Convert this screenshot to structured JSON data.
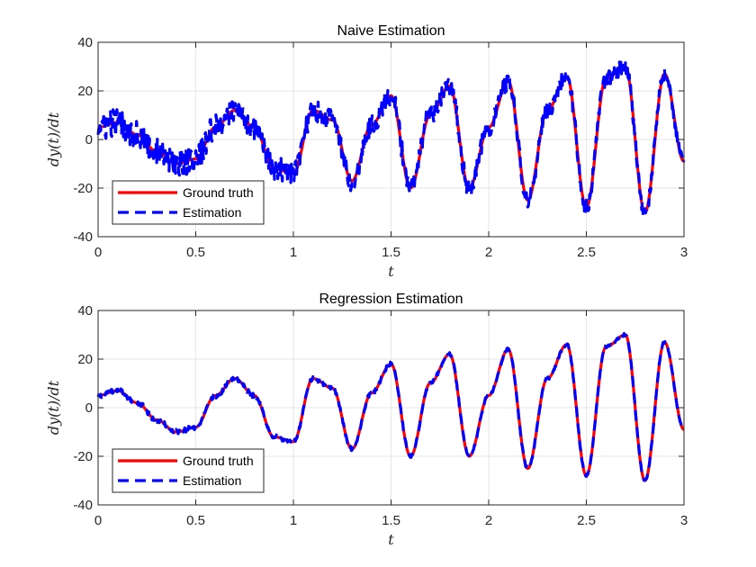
{
  "chart_data": [
    {
      "type": "line",
      "title": "Naive Estimation",
      "xlabel": "t",
      "ylabel": "dy(t)/dt",
      "xlim": [
        0,
        3
      ],
      "ylim": [
        -40,
        40
      ],
      "xticks": [
        "0",
        "0.5",
        "1",
        "1.5",
        "2",
        "2.5",
        "3"
      ],
      "yticks": [
        "40",
        "20",
        "0",
        "-20",
        "-40"
      ],
      "grid": true,
      "legend_position": "bottom-left",
      "series": [
        {
          "name": "Ground truth",
          "color": "#ff0000",
          "style": "solid",
          "x": [
            0,
            0.1,
            0.2,
            0.3,
            0.4,
            0.5,
            0.6,
            0.7,
            0.8,
            0.9,
            1.0,
            1.1,
            1.2,
            1.3,
            1.4,
            1.5,
            1.6,
            1.7,
            1.8,
            1.9,
            2.0,
            2.1,
            2.2,
            2.3,
            2.4,
            2.5,
            2.6,
            2.7,
            2.8,
            2.9,
            3.0
          ],
          "y": [
            5,
            7,
            2,
            -5,
            -10,
            -8,
            5,
            12,
            5,
            -12,
            -14,
            12,
            8,
            -17,
            6,
            18,
            -20,
            10,
            22,
            -20,
            5,
            24,
            -25,
            12,
            26,
            -28,
            25,
            30,
            -30,
            27,
            -9
          ]
        },
        {
          "name": "Estimation",
          "color": "#0000ff",
          "style": "dashed",
          "noise": 6,
          "x": [
            0,
            0.1,
            0.2,
            0.3,
            0.4,
            0.5,
            0.6,
            0.7,
            0.8,
            0.9,
            1.0,
            1.1,
            1.2,
            1.3,
            1.4,
            1.5,
            1.6,
            1.7,
            1.8,
            1.9,
            2.0,
            2.1,
            2.2,
            2.3,
            2.4,
            2.5,
            2.6,
            2.7,
            2.8,
            2.9,
            3.0
          ],
          "y": [
            5,
            7,
            2,
            -5,
            -10,
            -8,
            5,
            12,
            5,
            -12,
            -14,
            12,
            8,
            -17,
            6,
            18,
            -20,
            10,
            22,
            -20,
            5,
            24,
            -25,
            12,
            26,
            -28,
            25,
            30,
            -30,
            27,
            -9
          ]
        }
      ]
    },
    {
      "type": "line",
      "title": "Regression Estimation",
      "xlabel": "t",
      "ylabel": "dy(t)/dt",
      "xlim": [
        0,
        3
      ],
      "ylim": [
        -40,
        40
      ],
      "xticks": [
        "0",
        "0.5",
        "1",
        "1.5",
        "2",
        "2.5",
        "3"
      ],
      "yticks": [
        "40",
        "20",
        "0",
        "-20",
        "-40"
      ],
      "grid": true,
      "legend_position": "bottom-left",
      "series": [
        {
          "name": "Ground truth",
          "color": "#ff0000",
          "style": "solid",
          "x": [
            0,
            0.1,
            0.2,
            0.3,
            0.4,
            0.5,
            0.6,
            0.7,
            0.8,
            0.9,
            1.0,
            1.1,
            1.2,
            1.3,
            1.4,
            1.5,
            1.6,
            1.7,
            1.8,
            1.9,
            2.0,
            2.1,
            2.2,
            2.3,
            2.4,
            2.5,
            2.6,
            2.7,
            2.8,
            2.9,
            3.0
          ],
          "y": [
            5,
            7,
            2,
            -5,
            -10,
            -8,
            5,
            12,
            5,
            -12,
            -14,
            12,
            8,
            -17,
            6,
            18,
            -20,
            10,
            22,
            -20,
            5,
            24,
            -25,
            12,
            26,
            -28,
            25,
            30,
            -30,
            27,
            -9
          ]
        },
        {
          "name": "Estimation",
          "color": "#0000ff",
          "style": "dashed",
          "noise": 1.2,
          "x": [
            0,
            0.1,
            0.2,
            0.3,
            0.4,
            0.5,
            0.6,
            0.7,
            0.8,
            0.9,
            1.0,
            1.1,
            1.2,
            1.3,
            1.4,
            1.5,
            1.6,
            1.7,
            1.8,
            1.9,
            2.0,
            2.1,
            2.2,
            2.3,
            2.4,
            2.5,
            2.6,
            2.7,
            2.8,
            2.9,
            3.0
          ],
          "y": [
            5,
            7,
            2,
            -5,
            -10,
            -8,
            5,
            12,
            5,
            -12,
            -14,
            12,
            8,
            -17,
            6,
            18,
            -20,
            10,
            22,
            -20,
            5,
            24,
            -25,
            12,
            26,
            -28,
            25,
            30,
            -30,
            27,
            -9
          ]
        }
      ]
    }
  ]
}
